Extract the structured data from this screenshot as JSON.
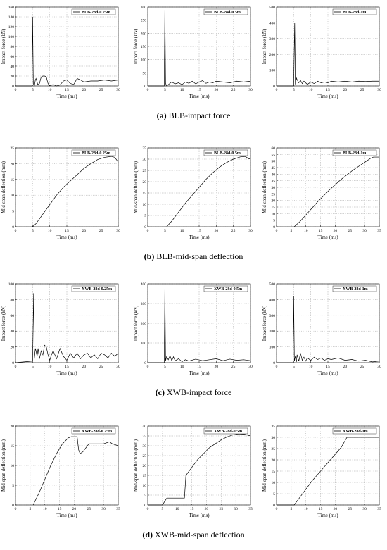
{
  "chart_data": [
    {
      "type": "line",
      "xlabel": "Time (ms)",
      "ylabel": "Impact force (kN)",
      "xlim": [
        0,
        30
      ],
      "xticks": [
        0,
        5,
        10,
        15,
        20,
        25,
        30
      ],
      "ylim": [
        0,
        160
      ],
      "yticks": [
        0,
        20,
        40,
        60,
        80,
        100,
        120,
        140,
        160
      ],
      "grid": true,
      "legend": "upper right",
      "series": [
        {
          "name": "BLB-28d-0.25m",
          "color": "#000000",
          "x": [
            0,
            4.8,
            5,
            5.2,
            5.5,
            5.8,
            6,
            6.5,
            7,
            7.5,
            8,
            8.5,
            9,
            9.5,
            10,
            11,
            12,
            13,
            14,
            15,
            16,
            17,
            18,
            19,
            20,
            22,
            24,
            26,
            28,
            30
          ],
          "values": [
            0,
            0,
            140,
            5,
            0,
            12,
            15,
            3,
            5,
            18,
            20,
            20,
            18,
            5,
            0,
            3,
            0,
            2,
            10,
            12,
            5,
            3,
            15,
            12,
            8,
            10,
            10,
            12,
            10,
            12
          ]
        }
      ]
    },
    {
      "type": "line",
      "xlabel": "Time (ms)",
      "ylabel": "Impact force (kN)",
      "xlim": [
        0,
        30
      ],
      "xticks": [
        0,
        5,
        10,
        15,
        20,
        25,
        30
      ],
      "ylim": [
        0,
        300
      ],
      "yticks": [
        0,
        50,
        100,
        150,
        200,
        250,
        300
      ],
      "grid": true,
      "legend": "upper right",
      "series": [
        {
          "name": "BLB-28d-0.5m",
          "color": "#000000",
          "x": [
            0,
            4.8,
            5,
            5.2,
            5.5,
            6,
            7,
            8,
            9,
            10,
            11,
            12,
            13,
            14,
            15,
            16,
            17,
            18,
            19,
            20,
            22,
            24,
            26,
            28,
            30
          ],
          "values": [
            0,
            0,
            290,
            10,
            0,
            5,
            15,
            8,
            12,
            5,
            15,
            10,
            18,
            8,
            15,
            20,
            10,
            15,
            12,
            18,
            15,
            12,
            18,
            15,
            18
          ]
        }
      ]
    },
    {
      "type": "line",
      "xlabel": "Time (ms)",
      "ylabel": "Impact force (kN)",
      "xlim": [
        0,
        30
      ],
      "xticks": [
        0,
        5,
        10,
        15,
        20,
        25,
        30
      ],
      "ylim": [
        0,
        500
      ],
      "yticks": [
        0,
        100,
        200,
        300,
        400,
        500
      ],
      "grid": true,
      "legend": "upper right",
      "series": [
        {
          "name": "BLB-28d-1m",
          "color": "#000000",
          "x": [
            0,
            5,
            5.3,
            5.5,
            5.8,
            6,
            6.5,
            7,
            7.5,
            8,
            9,
            10,
            11,
            12,
            13,
            14,
            15,
            16,
            18,
            20,
            22,
            24,
            26,
            28,
            30
          ],
          "values": [
            0,
            0,
            400,
            10,
            50,
            40,
            20,
            35,
            15,
            30,
            10,
            25,
            15,
            30,
            20,
            25,
            20,
            30,
            25,
            30,
            25,
            30,
            28,
            30,
            30
          ]
        }
      ]
    },
    {
      "type": "line",
      "xlabel": "Time (ms)",
      "ylabel": "Mid-span deflection (mm)",
      "xlim": [
        0,
        30
      ],
      "xticks": [
        0,
        5,
        10,
        15,
        20,
        25,
        30
      ],
      "ylim": [
        0,
        25
      ],
      "yticks": [
        0,
        5,
        10,
        15,
        20,
        25
      ],
      "grid": true,
      "legend": "upper right",
      "series": [
        {
          "name": "BLB-28d-0.25m",
          "color": "#000000",
          "x": [
            5,
            6,
            8,
            10,
            12,
            14,
            16,
            18,
            20,
            22,
            24,
            26,
            28,
            29,
            30
          ],
          "values": [
            0,
            1,
            4,
            7,
            10,
            12.5,
            14.5,
            16.5,
            18.5,
            20,
            21.3,
            22,
            22.3,
            22,
            20.5
          ]
        }
      ]
    },
    {
      "type": "line",
      "xlabel": "Time (ms)",
      "ylabel": "Mid-span deflection (mm)",
      "xlim": [
        0,
        30
      ],
      "xticks": [
        0,
        5,
        10,
        15,
        20,
        25,
        30
      ],
      "ylim": [
        0,
        35
      ],
      "yticks": [
        0,
        5,
        10,
        15,
        20,
        25,
        30,
        35
      ],
      "grid": true,
      "legend": "upper right",
      "series": [
        {
          "name": "BLB-28d-0.5m",
          "color": "#000000",
          "x": [
            5.5,
            7,
            9,
            11,
            13,
            15,
            17,
            19,
            21,
            23,
            25,
            27,
            28.5,
            29.5,
            30
          ],
          "values": [
            0,
            2.5,
            6.5,
            10.5,
            14,
            17.5,
            21,
            24,
            26.5,
            28.5,
            30,
            31,
            31.2,
            30.2,
            30.2
          ]
        }
      ]
    },
    {
      "type": "line",
      "xlabel": "Time (ms)",
      "ylabel": "Mid-span deflection (mm)",
      "xlim": [
        0,
        35
      ],
      "xticks": [
        0,
        5,
        10,
        15,
        20,
        25,
        30,
        35
      ],
      "ylim": [
        0,
        60
      ],
      "yticks": [
        0,
        5,
        10,
        15,
        20,
        25,
        30,
        35,
        40,
        45,
        50,
        55,
        60
      ],
      "grid": true,
      "legend": "upper right",
      "series": [
        {
          "name": "BLB-28d-1m",
          "color": "#000000",
          "x": [
            6,
            8,
            10,
            12,
            14,
            16,
            18,
            20,
            22,
            24,
            26,
            28,
            30,
            32,
            33,
            35
          ],
          "values": [
            0,
            4,
            9,
            14,
            19,
            23.5,
            28,
            32,
            36,
            39.5,
            43,
            46,
            49,
            52,
            53,
            53
          ]
        }
      ]
    },
    {
      "type": "line",
      "xlabel": "Time (ms)",
      "ylabel": "Impact force (kN)",
      "xlim": [
        0,
        30
      ],
      "xticks": [
        0,
        5,
        10,
        15,
        20,
        25,
        30
      ],
      "ylim": [
        0,
        100
      ],
      "yticks": [
        0,
        20,
        40,
        60,
        80,
        100
      ],
      "grid": true,
      "legend": "upper right",
      "series": [
        {
          "name": "XWB-28d-0.25m",
          "color": "#000000",
          "x": [
            0,
            5,
            5.3,
            5.5,
            5.8,
            6,
            6.3,
            6.6,
            7,
            7.5,
            8,
            8.5,
            9,
            9.5,
            10,
            10.5,
            11,
            12,
            13,
            14,
            15,
            16,
            17,
            18,
            19,
            20,
            21,
            22,
            23,
            24,
            25,
            26,
            27,
            28,
            29,
            30
          ],
          "values": [
            0,
            2,
            88,
            5,
            18,
            15,
            8,
            18,
            5,
            15,
            10,
            22,
            20,
            10,
            3,
            10,
            15,
            5,
            18,
            8,
            3,
            12,
            6,
            12,
            5,
            10,
            12,
            6,
            10,
            5,
            12,
            10,
            6,
            12,
            8,
            12
          ]
        }
      ]
    },
    {
      "type": "line",
      "xlabel": "Time (ms)",
      "ylabel": "Impact force (kN)",
      "xlim": [
        0,
        30
      ],
      "xticks": [
        0,
        5,
        10,
        15,
        20,
        25,
        30
      ],
      "ylim": [
        0,
        400
      ],
      "yticks": [
        0,
        100,
        200,
        300,
        400
      ],
      "grid": true,
      "legend": "upper right",
      "series": [
        {
          "name": "XWB-28d-0.5m",
          "color": "#000000",
          "x": [
            0,
            4.8,
            5,
            5.2,
            5.5,
            6,
            6.5,
            7,
            7.5,
            8,
            9,
            10,
            11,
            12,
            14,
            16,
            18,
            20,
            22,
            24,
            26,
            28,
            30
          ],
          "values": [
            0,
            0,
            370,
            10,
            30,
            15,
            35,
            10,
            30,
            10,
            20,
            5,
            15,
            8,
            18,
            10,
            15,
            20,
            10,
            18,
            12,
            15,
            10
          ]
        }
      ]
    },
    {
      "type": "line",
      "xlabel": "Time (ms)",
      "ylabel": "Impact force (kN)",
      "xlim": [
        0,
        30
      ],
      "xticks": [
        0,
        5,
        10,
        15,
        20,
        25,
        30
      ],
      "ylim": [
        0,
        500
      ],
      "yticks": [
        0,
        100,
        200,
        300,
        400,
        500
      ],
      "grid": true,
      "legend": "upper right",
      "series": [
        {
          "name": "XWB-28d-1m",
          "color": "#000000",
          "x": [
            0,
            4.8,
            5,
            5.2,
            5.5,
            5.8,
            6,
            6.5,
            7,
            7.5,
            8,
            8.5,
            9,
            10,
            11,
            12,
            13,
            14,
            15,
            16,
            18,
            20,
            22,
            24,
            26,
            28,
            30
          ],
          "values": [
            0,
            0,
            420,
            10,
            40,
            5,
            50,
            10,
            60,
            15,
            35,
            10,
            30,
            15,
            35,
            20,
            30,
            15,
            25,
            20,
            30,
            15,
            20,
            10,
            15,
            5,
            10
          ]
        }
      ]
    },
    {
      "type": "line",
      "xlabel": "Time (ms)",
      "ylabel": "Mid-span deflection (mm)",
      "xlim": [
        0,
        35
      ],
      "xticks": [
        0,
        5,
        10,
        15,
        20,
        25,
        30,
        35
      ],
      "ylim": [
        0,
        20
      ],
      "yticks": [
        0,
        5,
        10,
        15,
        20
      ],
      "grid": true,
      "legend": "upper right",
      "series": [
        {
          "name": "XWB-28d-0.25m",
          "color": "#000000",
          "x": [
            6,
            8,
            10,
            12,
            14,
            16,
            18,
            19,
            21,
            21.5,
            22,
            23,
            25,
            28,
            30,
            32,
            33,
            35
          ],
          "values": [
            0,
            3,
            6.5,
            10,
            13,
            15.5,
            17,
            17.3,
            17.3,
            14,
            13,
            13.5,
            15.5,
            15.5,
            15.5,
            16,
            15.5,
            15
          ]
        }
      ]
    },
    {
      "type": "line",
      "xlabel": "Time (ms)",
      "ylabel": "Mid-span deflection (mm)",
      "xlim": [
        0,
        35
      ],
      "xticks": [
        0,
        5,
        10,
        15,
        20,
        25,
        30,
        35
      ],
      "ylim": [
        0,
        40
      ],
      "yticks": [
        0,
        5,
        10,
        15,
        20,
        25,
        30,
        35,
        40
      ],
      "grid": true,
      "legend": "upper right",
      "series": [
        {
          "name": "XWB-28d-0.5m",
          "color": "#000000",
          "x": [
            0,
            5,
            6.5,
            12.5,
            13,
            15,
            17,
            19,
            21,
            23,
            25,
            27,
            29,
            31,
            33,
            35
          ],
          "values": [
            0,
            0,
            3.5,
            3.5,
            15,
            19,
            23,
            26,
            29,
            31,
            33,
            34.5,
            35.5,
            36,
            35.8,
            35
          ]
        }
      ]
    },
    {
      "type": "line",
      "xlabel": "Time (ms)",
      "ylabel": "Mid-span deflection (mm)",
      "xlim": [
        0,
        35
      ],
      "xticks": [
        0,
        5,
        10,
        15,
        20,
        25,
        30,
        35
      ],
      "ylim": [
        0,
        35
      ],
      "yticks": [
        0,
        5,
        10,
        15,
        20,
        25,
        30,
        35
      ],
      "grid": true,
      "legend": "upper right",
      "series": [
        {
          "name": "XWB-28d-1m",
          "color": "#000000",
          "x": [
            0,
            6,
            8,
            10,
            12,
            14,
            16,
            18,
            20,
            22,
            24,
            27,
            30,
            35
          ],
          "values": [
            0,
            0,
            3.5,
            7,
            10.5,
            13.5,
            16.5,
            19.5,
            22.5,
            25.5,
            30,
            30,
            30,
            30
          ]
        }
      ]
    }
  ],
  "captions": [
    {
      "label": "(a)",
      "text": "BLB-impact force"
    },
    {
      "label": "(b)",
      "text": "BLB-mid-span deflection"
    },
    {
      "label": "(c)",
      "text": "XWB-impact force"
    },
    {
      "label": "(d)",
      "text": "XWB-mid-span deflection"
    }
  ]
}
